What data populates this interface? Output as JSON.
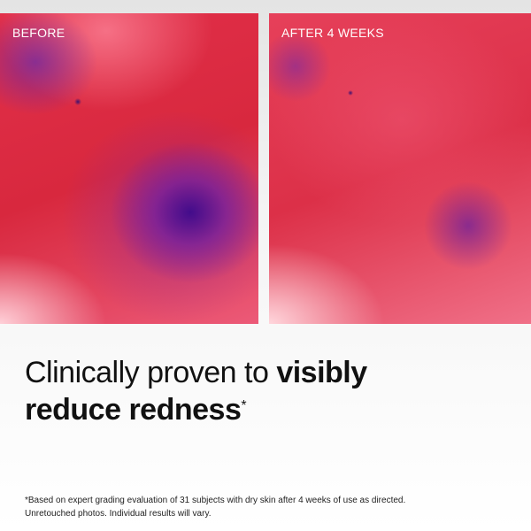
{
  "panels": [
    {
      "label": "BEFORE"
    },
    {
      "label": "AFTER 4 WEEKS"
    }
  ],
  "headline": {
    "regular": "Clinically proven to",
    "bold_line_1": "visibly",
    "bold_line_2": "reduce redness",
    "asterisk": "*"
  },
  "footnote": {
    "line_1": "*Based on expert grading evaluation of 31 subjects with dry skin after 4 weeks of use as directed.",
    "line_2": "Unretouched photos. Individual results will vary."
  }
}
